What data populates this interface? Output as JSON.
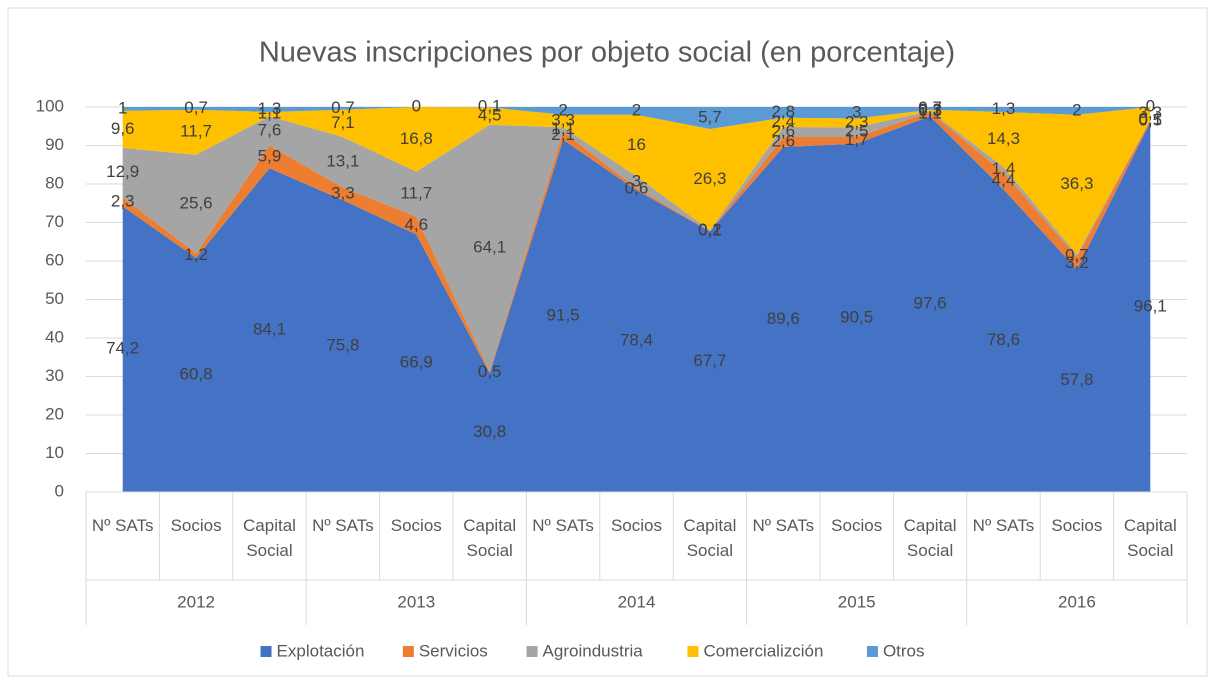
{
  "chart_data": {
    "type": "area",
    "stacked": true,
    "title": "Nuevas inscripciones por objeto social (en porcentaje)",
    "categories": [
      "Nº SATs",
      "Socios",
      "Capital Social",
      "Nº SATs",
      "Socios",
      "Capital Social",
      "Nº SATs",
      "Socios",
      "Capital Social",
      "Nº SATs",
      "Socios",
      "Capital Social",
      "Nº SATs",
      "Socios",
      "Capital Social"
    ],
    "category_groups": [
      "2012",
      "2013",
      "2014",
      "2015",
      "2016"
    ],
    "ylim": [
      0,
      100
    ],
    "yticks": [
      0,
      10,
      20,
      30,
      40,
      50,
      60,
      70,
      80,
      90,
      100
    ],
    "grid": true,
    "legend": "bottom",
    "series": [
      {
        "name": "Explotación",
        "color": "#4472c4",
        "values": [
          74.2,
          60.8,
          84.1,
          75.8,
          66.9,
          30.8,
          91.5,
          78.4,
          67.7,
          89.6,
          90.5,
          97.6,
          78.6,
          57.8,
          96.1
        ],
        "value_labels": [
          "74,2",
          "60,8",
          "84,1",
          "75,8",
          "66,9",
          "30,8",
          "91,5",
          "78,4",
          "67,7",
          "89,6",
          "90,5",
          "97,6",
          "78,6",
          "57,8",
          "96,1"
        ]
      },
      {
        "name": "Servicios",
        "color": "#ed7d31",
        "values": [
          2.3,
          1.2,
          5.9,
          3.3,
          4.6,
          0.5,
          2.1,
          0.6,
          0.1,
          2.6,
          1.7,
          1.1,
          4.4,
          3.2,
          0.5
        ],
        "value_labels": [
          "2,3",
          "1,2",
          "5,9",
          "3,3",
          "4,6",
          "0,5",
          "2,1",
          "0,6",
          "0,1",
          "2,6",
          "1,7",
          "1,1",
          "4,4",
          "3,2",
          "0,5"
        ]
      },
      {
        "name": "Agroindustria",
        "color": "#a5a5a5",
        "values": [
          12.9,
          25.6,
          7.6,
          13.1,
          11.7,
          64.1,
          1.1,
          3.0,
          0.2,
          2.6,
          2.5,
          0.3,
          1.4,
          0.7,
          0.1
        ],
        "value_labels": [
          "12,9",
          "25,6",
          "7,6",
          "13,1",
          "11,7",
          "64,1",
          "1,1",
          "3",
          "0,2",
          "2,6",
          "2,5",
          "0,3",
          "1,4",
          "0,7",
          "0,1"
        ]
      },
      {
        "name": "Comercializción",
        "color": "#ffc000",
        "values": [
          9.6,
          11.7,
          1.1,
          7.1,
          16.8,
          4.5,
          3.3,
          16,
          26.3,
          2.4,
          2.3,
          0.3,
          14.3,
          36.3,
          3.3
        ],
        "value_labels": [
          "9,6",
          "11,7",
          "1,1",
          "7,1",
          "16,8",
          "4,5",
          "3,3",
          "16",
          "26,3",
          "2,4",
          "2,3",
          "0,3",
          "14,3",
          "36,3",
          "3,3"
        ]
      },
      {
        "name": "Otros",
        "color": "#5b9bd5",
        "values": [
          1.0,
          0.7,
          1.3,
          0.7,
          0,
          0.1,
          2.0,
          2.0,
          5.7,
          2.8,
          3.0,
          0.7,
          1.3,
          2.0,
          0
        ],
        "value_labels": [
          "1",
          "0,7",
          "1,3",
          "0,7",
          "0",
          "0,1",
          "2",
          "2",
          "5,7",
          "2,8",
          "3",
          "0,7",
          "1,3",
          "2",
          "0"
        ]
      }
    ]
  }
}
